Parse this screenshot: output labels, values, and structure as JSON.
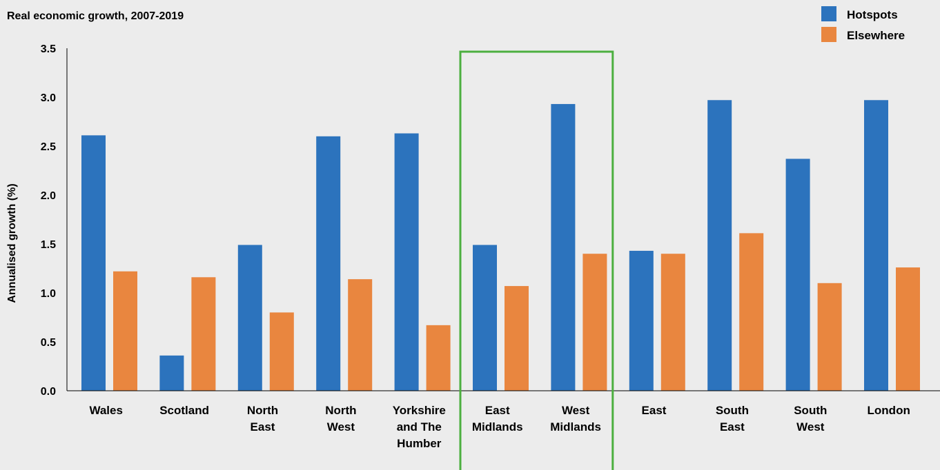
{
  "chart_data": {
    "type": "bar",
    "title": "Real economic growth, 2007-2019",
    "ylabel": "Annualised growth (%)",
    "xlabel": "",
    "ylim": [
      0,
      3.5
    ],
    "yticks": [
      "0.0",
      "0.5",
      "1.0",
      "1.5",
      "2.0",
      "2.5",
      "3.0",
      "3.5"
    ],
    "categories": [
      [
        "Wales"
      ],
      [
        "Scotland"
      ],
      [
        "North",
        "East"
      ],
      [
        "North",
        "West"
      ],
      [
        "Yorkshire",
        "and The",
        "Humber"
      ],
      [
        "East",
        "Midlands"
      ],
      [
        "West",
        "Midlands"
      ],
      [
        "East"
      ],
      [
        "South",
        "East"
      ],
      [
        "South",
        "West"
      ],
      [
        "London"
      ]
    ],
    "series": [
      {
        "name": "Hotspots",
        "color": "#2c73bd",
        "values": [
          2.61,
          0.36,
          1.49,
          2.6,
          2.63,
          1.49,
          2.93,
          1.43,
          2.97,
          2.37,
          2.97
        ]
      },
      {
        "name": "Elsewhere",
        "color": "#e9863f",
        "values": [
          1.22,
          1.16,
          0.8,
          1.14,
          0.67,
          1.07,
          1.4,
          1.4,
          1.61,
          1.1,
          1.26
        ]
      }
    ],
    "highlight": {
      "categories": [
        "East Midlands",
        "West Midlands"
      ],
      "color": "#4caf3f"
    },
    "grid": false,
    "legend_position": "top-right"
  }
}
